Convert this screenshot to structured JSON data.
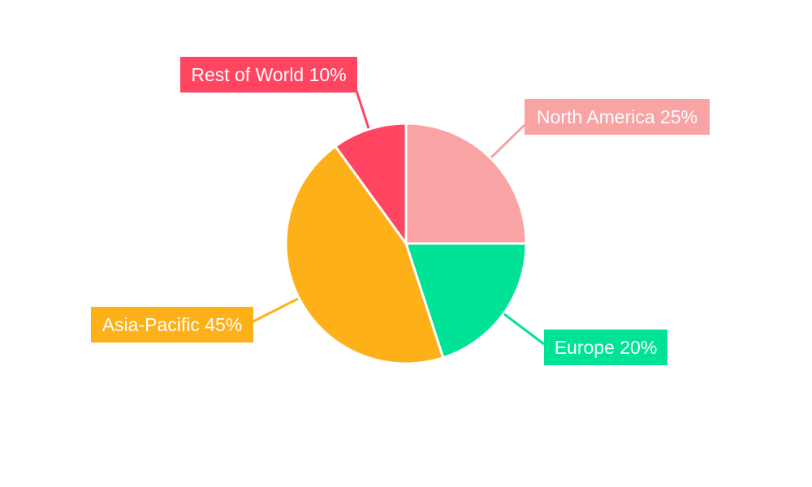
{
  "chart_data": {
    "type": "pie",
    "title": "",
    "start_angle": "top, clockwise",
    "slices": [
      {
        "label": "North America",
        "value": 25,
        "display": "North America 25%",
        "color": "#f9a3a4"
      },
      {
        "label": "Europe",
        "value": 20,
        "display": "Europe 20%",
        "color": "#00e396"
      },
      {
        "label": "Asia-Pacific",
        "value": 45,
        "display": "Asia-Pacific 45%",
        "color": "#feb019"
      },
      {
        "label": "Rest of World",
        "value": 10,
        "display": "Rest of World 10%",
        "color": "#ff4560"
      }
    ]
  }
}
